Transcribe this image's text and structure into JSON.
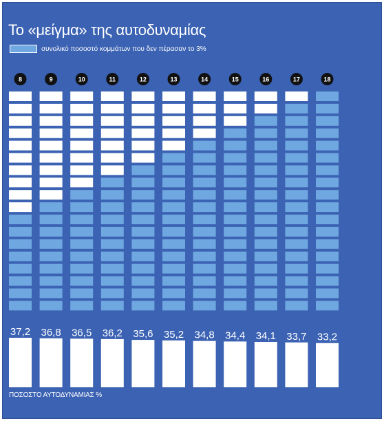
{
  "chart_data": {
    "type": "bar",
    "title": "Το «μείγμα» της αυτοδυναμίας",
    "legend": [
      {
        "label": "συνολικό ποσοστό κομμάτων που δεν πέρασαν το 3%",
        "color": "#6fa8e0"
      }
    ],
    "xlabel": "ΠΟΣΟΣΤΟ ΑΥΤΟΔΥΝΑΜΙΑΣ %",
    "categories": [
      "8",
      "9",
      "10",
      "11",
      "12",
      "13",
      "14",
      "15",
      "16",
      "17",
      "18"
    ],
    "series": [
      {
        "values": [
          8,
          9,
          10,
          11,
          12,
          13,
          14,
          15,
          16,
          17,
          18
        ]
      },
      {
        "values": [
          37.2,
          36.8,
          36.5,
          36.2,
          35.6,
          35.2,
          34.8,
          34.4,
          34.1,
          33.7,
          33.2
        ]
      }
    ],
    "grid_cells_per_column": 18,
    "value_labels": [
      "37,2",
      "36,8",
      "36,5",
      "36,2",
      "35,6",
      "35,2",
      "34,8",
      "34,4",
      "34,1",
      "33,7",
      "33,2"
    ],
    "ylim": [
      0,
      37.2
    ],
    "colors": {
      "background": "#3b62b3",
      "filled": "#6fa8e0",
      "empty": "#ffffff",
      "badge": "#111111"
    }
  }
}
